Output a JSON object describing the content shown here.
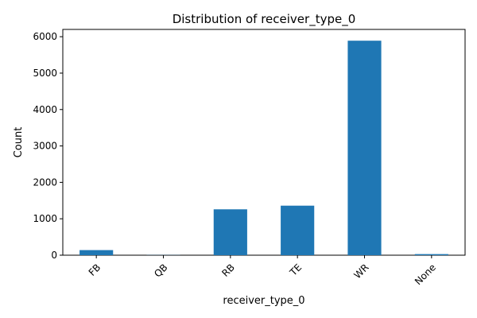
{
  "chart_data": {
    "type": "bar",
    "title": "Distribution of receiver_type_0",
    "xlabel": "receiver_type_0",
    "ylabel": "Count",
    "categories": [
      "FB",
      "QB",
      "RB",
      "TE",
      "WR",
      "None"
    ],
    "values": [
      140,
      4,
      1260,
      1360,
      5890,
      30
    ],
    "ylim": [
      0,
      6200
    ],
    "yticks": [
      0,
      1000,
      2000,
      3000,
      4000,
      5000,
      6000
    ],
    "bar_color": "#1f77b4",
    "grid": false,
    "legend": "none"
  }
}
